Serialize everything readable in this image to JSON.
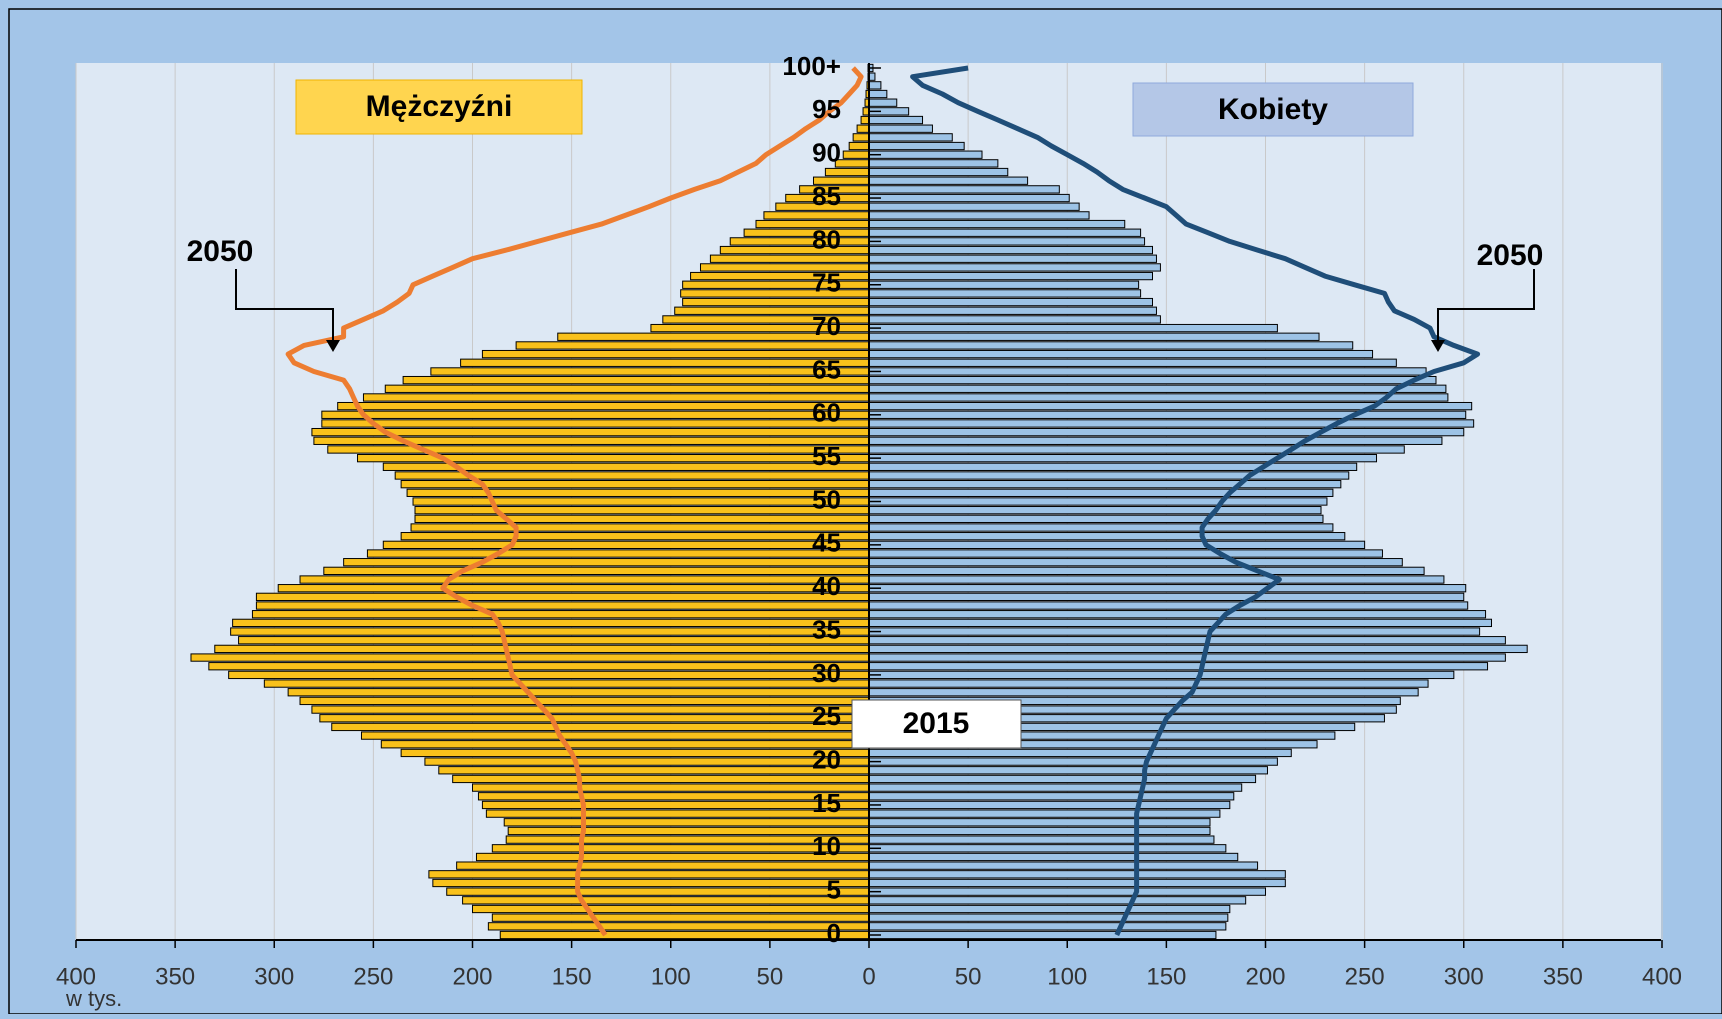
{
  "chart_data": {
    "type": "pyramid",
    "categories": [
      "0",
      null,
      null,
      null,
      null,
      "5",
      null,
      null,
      null,
      null,
      "10",
      null,
      null,
      null,
      null,
      "15",
      null,
      null,
      null,
      null,
      "20",
      null,
      null,
      null,
      null,
      "25",
      null,
      null,
      null,
      null,
      "30",
      null,
      null,
      null,
      null,
      "35",
      null,
      null,
      null,
      null,
      "40",
      null,
      null,
      null,
      null,
      "45",
      null,
      null,
      null,
      null,
      "50",
      null,
      null,
      null,
      null,
      "55",
      null,
      null,
      null,
      null,
      "60",
      null,
      null,
      null,
      null,
      "65",
      null,
      null,
      null,
      null,
      "70",
      null,
      null,
      null,
      null,
      "75",
      null,
      null,
      null,
      null,
      "80",
      null,
      null,
      null,
      null,
      "85",
      null,
      null,
      null,
      null,
      "90",
      null,
      null,
      null,
      null,
      "95",
      null,
      null,
      null,
      null,
      "100+"
    ],
    "series": [
      {
        "name": "Mężczyźni",
        "kind": "bar",
        "side": "left",
        "color": "#f9c11b",
        "values": [
          186,
          192,
          190,
          200,
          205,
          213,
          220,
          222,
          208,
          198,
          190,
          183,
          182,
          184,
          193,
          195,
          197,
          200,
          210,
          217,
          224,
          236,
          246,
          256,
          271,
          277,
          281,
          287,
          293,
          305,
          323,
          333,
          342,
          330,
          318,
          322,
          321,
          311,
          309,
          309,
          298,
          287,
          275,
          265,
          253,
          245,
          236,
          231,
          229,
          229,
          230,
          233,
          236,
          239,
          245,
          258,
          273,
          280,
          281,
          276,
          276,
          268,
          255,
          244,
          235,
          221,
          206,
          195,
          178,
          157,
          110,
          104,
          98,
          94,
          95,
          94,
          90,
          85,
          80,
          75,
          70,
          63,
          57,
          53,
          47,
          42,
          35,
          28,
          22,
          17,
          13,
          10,
          8,
          6,
          4,
          3,
          2,
          1.5,
          1,
          0.5,
          0.5
        ]
      },
      {
        "name": "Kobiety",
        "kind": "bar",
        "side": "right",
        "color": "#9dc3e6",
        "values": [
          175,
          180,
          181,
          182,
          190,
          200,
          210,
          210,
          196,
          186,
          180,
          174,
          172,
          172,
          177,
          182,
          184,
          188,
          195,
          201,
          206,
          213,
          226,
          235,
          245,
          260,
          266,
          268,
          277,
          282,
          295,
          312,
          321,
          332,
          321,
          308,
          314,
          311,
          302,
          300,
          301,
          290,
          280,
          269,
          259,
          250,
          240,
          234,
          229,
          228,
          231,
          234,
          238,
          242,
          246,
          256,
          270,
          289,
          300,
          305,
          301,
          304,
          292,
          291,
          286,
          281,
          266,
          254,
          244,
          227,
          206,
          147,
          145,
          143,
          137,
          136,
          143,
          147,
          145,
          143,
          139,
          137,
          129,
          111,
          106,
          101,
          96,
          80,
          70,
          65,
          57,
          48,
          42,
          32,
          27,
          20,
          14,
          9,
          6,
          3,
          2
        ]
      },
      {
        "name": "2050",
        "kind": "line",
        "side": "left",
        "color": "#ed7d31",
        "values": [
          133,
          136,
          139,
          142,
          145,
          147,
          147,
          147,
          146,
          145,
          145,
          145,
          144,
          144,
          144,
          144,
          145,
          146,
          146,
          147,
          148,
          150,
          153,
          156,
          158,
          160,
          164,
          168,
          172,
          176,
          180,
          181,
          182,
          183,
          184,
          185,
          187,
          190,
          200,
          208,
          215,
          212,
          205,
          195,
          187,
          180,
          178,
          178,
          183,
          188,
          190,
          192,
          195,
          202,
          208,
          215,
          225,
          235,
          244,
          250,
          255,
          258,
          260,
          262,
          265,
          280,
          290,
          293,
          285,
          265,
          265,
          255,
          245,
          238,
          232,
          230,
          220,
          210,
          200,
          183,
          167,
          151,
          135,
          123,
          111,
          100,
          88,
          75,
          66,
          57,
          52,
          45,
          38,
          32,
          25,
          20,
          14,
          10,
          6,
          4,
          8
        ]
      },
      {
        "name": "2050",
        "kind": "line",
        "side": "right",
        "color": "#1f4e79",
        "values": [
          125,
          127,
          129,
          131,
          133,
          135,
          135,
          135,
          135,
          135,
          135,
          135,
          135,
          135,
          135,
          136,
          137,
          138,
          139,
          139,
          140,
          142,
          144,
          146,
          148,
          150,
          154,
          158,
          163,
          165,
          167,
          168,
          169,
          170,
          171,
          172,
          176,
          180,
          187,
          195,
          201,
          207,
          196,
          185,
          177,
          170,
          168,
          168,
          171,
          175,
          178,
          182,
          187,
          192,
          199,
          206,
          213,
          220,
          228,
          236,
          245,
          255,
          261,
          266,
          275,
          285,
          300,
          307,
          295,
          285,
          283,
          275,
          265,
          262,
          260,
          245,
          230,
          220,
          210,
          196,
          182,
          171,
          160,
          155,
          150,
          139,
          128,
          121,
          115,
          108,
          100,
          92,
          85,
          75,
          65,
          55,
          45,
          37,
          27,
          22,
          50
        ]
      }
    ],
    "annotation": "2015",
    "xlabel": "w tys.",
    "xlim": [
      0,
      400
    ],
    "xticks": [
      0,
      50,
      100,
      150,
      200,
      250,
      300,
      350,
      400
    ],
    "grid": true
  }
}
